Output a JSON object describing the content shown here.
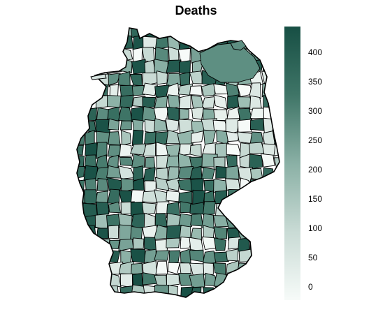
{
  "title": "Deaths",
  "legend": {
    "ticks": [
      "400",
      "350",
      "300",
      "250",
      "200",
      "150",
      "100",
      "50",
      "0"
    ],
    "color_high": "#174f44",
    "color_low": "#f7fbf9",
    "value_min": 0,
    "value_max": 440
  }
}
